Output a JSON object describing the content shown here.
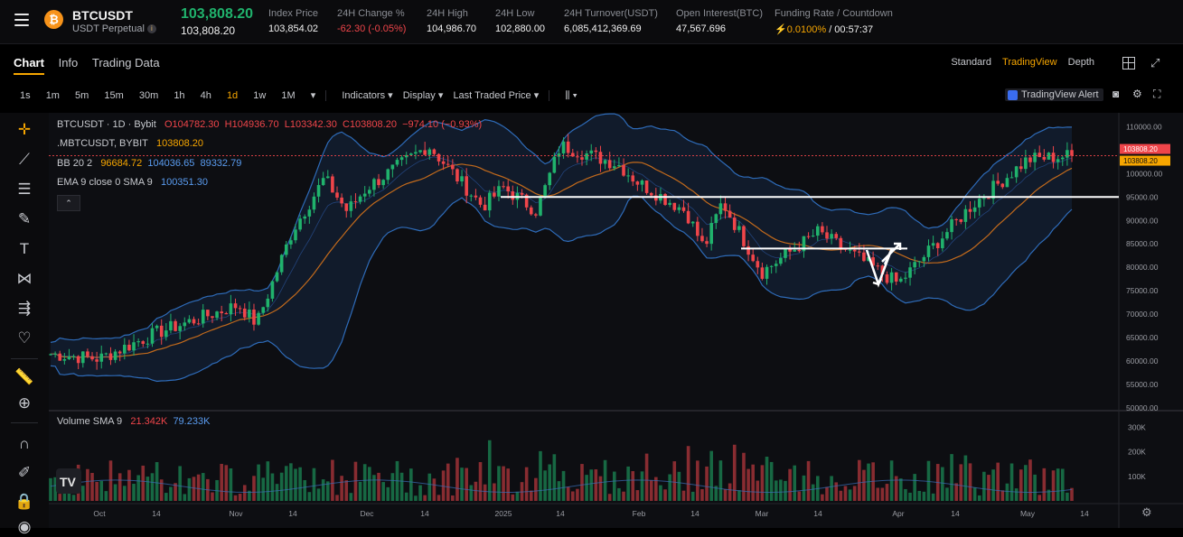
{
  "header": {
    "symbol": "BTCUSDT",
    "contract": "USDT Perpetual",
    "last_price": "103,808.20",
    "mark_price": "103,808.20",
    "stats": [
      {
        "label": "Index Price",
        "value": "103,854.02",
        "tone": "white"
      },
      {
        "label": "24H Change %",
        "value": "-62.30 (-0.05%)",
        "tone": "red"
      },
      {
        "label": "24H High",
        "value": "104,986.70",
        "tone": "white"
      },
      {
        "label": "24H Low",
        "value": "102,880.00",
        "tone": "white"
      },
      {
        "label": "24H Turnover(USDT)",
        "value": "6,085,412,369.69",
        "tone": "white"
      },
      {
        "label": "Open Interest(BTC)",
        "value": "47,567.696",
        "tone": "white"
      },
      {
        "label": "Funding Rate / Countdown",
        "value": "0.0100%",
        "countdown": " / 00:57:37",
        "tone": "funding"
      }
    ]
  },
  "tabs": [
    {
      "label": "Chart",
      "active": true
    },
    {
      "label": "Info",
      "active": false
    },
    {
      "label": "Trading Data",
      "active": false
    }
  ],
  "view_modes": [
    {
      "label": "Standard",
      "active": false
    },
    {
      "label": "TradingView",
      "active": true
    },
    {
      "label": "Depth",
      "active": false
    }
  ],
  "intervals": [
    {
      "label": "1s",
      "active": false
    },
    {
      "label": "1m",
      "active": false
    },
    {
      "label": "5m",
      "active": false
    },
    {
      "label": "15m",
      "active": false
    },
    {
      "label": "30m",
      "active": false
    },
    {
      "label": "1h",
      "active": false
    },
    {
      "label": "4h",
      "active": false
    },
    {
      "label": "1d",
      "active": true
    },
    {
      "label": "1w",
      "active": false
    },
    {
      "label": "1M",
      "active": false
    }
  ],
  "toolbar": {
    "indicators": "Indicators",
    "display": "Display",
    "last_traded_price": "Last Traded Price",
    "alert": "TradingView Alert"
  },
  "legend": {
    "title": "BTCUSDT · 1D · Bybit",
    "o": "O104782.30",
    "h": "H104936.70",
    "l": "L103342.30",
    "c": "C103808.20",
    "chg": "−974.10 (−0.93%)",
    "mark_line": ".MBTCUSDT, BYBIT",
    "mark_val": "103808.20",
    "bb_label": "BB 20 2",
    "bb_mid": "96684.72",
    "bb_up": "104036.65",
    "bb_low": "89332.79",
    "ema_label": "EMA 9 close 0 SMA 9",
    "ema_val": "100351.30",
    "vol_label": "Volume SMA 9",
    "vol_val": "21.342K",
    "vol_sma": "79.233K"
  },
  "price_axis": {
    "ticks": [
      "110000.00",
      "105000.00",
      "100000.00",
      "95000.00",
      "90000.00",
      "85000.00",
      "80000.00",
      "75000.00",
      "70000.00",
      "65000.00",
      "60000.00",
      "55000.00",
      "50000.00"
    ],
    "last_tag": "103808.20",
    "mark_tag": "103808.20"
  },
  "volume_axis": {
    "ticks": [
      "300K",
      "200K",
      "100K"
    ]
  },
  "time_axis": {
    "ticks": [
      "Oct",
      "14",
      "Nov",
      "14",
      "Dec",
      "14",
      "2025",
      "14",
      "Feb",
      "14",
      "Mar",
      "14",
      "Apr",
      "14",
      "May",
      "14"
    ]
  },
  "colors": {
    "up": "#20b26c",
    "down": "#ef454a",
    "accent": "#f7a600",
    "bb_line": "#2e6bb8"
  },
  "chart_data": {
    "type": "candlestick",
    "timeframe": "1D",
    "ylim": [
      50000,
      112000
    ],
    "anchor_closes": [
      [
        "Oct 1",
        61500
      ],
      [
        "Oct 10",
        60500
      ],
      [
        "Oct 14",
        66000
      ],
      [
        "Oct 29",
        72000
      ],
      [
        "Nov 4",
        68000
      ],
      [
        "Nov 11",
        88000
      ],
      [
        "Nov 22",
        99000
      ],
      [
        "Nov 26",
        92000
      ],
      [
        "Dec 5",
        97000
      ],
      [
        "Dec 17",
        106000
      ],
      [
        "Dec 30",
        93000
      ],
      [
        "Jan 7",
        97000
      ],
      [
        "Jan 13",
        92000
      ],
      [
        "Jan 20",
        106000
      ],
      [
        "Jan 31",
        102000
      ],
      [
        "Feb 3",
        98000
      ],
      [
        "Feb 24",
        92000
      ],
      [
        "Feb 28",
        84000
      ],
      [
        "Mar 2",
        94000
      ],
      [
        "Mar 10",
        79000
      ],
      [
        "Mar 24",
        87500
      ],
      [
        "Apr 7",
        76500
      ],
      [
        "Apr 22",
        93000
      ],
      [
        "May 8",
        103000
      ],
      [
        "May 10",
        103808
      ]
    ],
    "volume_ylim": [
      0,
      350000
    ]
  }
}
